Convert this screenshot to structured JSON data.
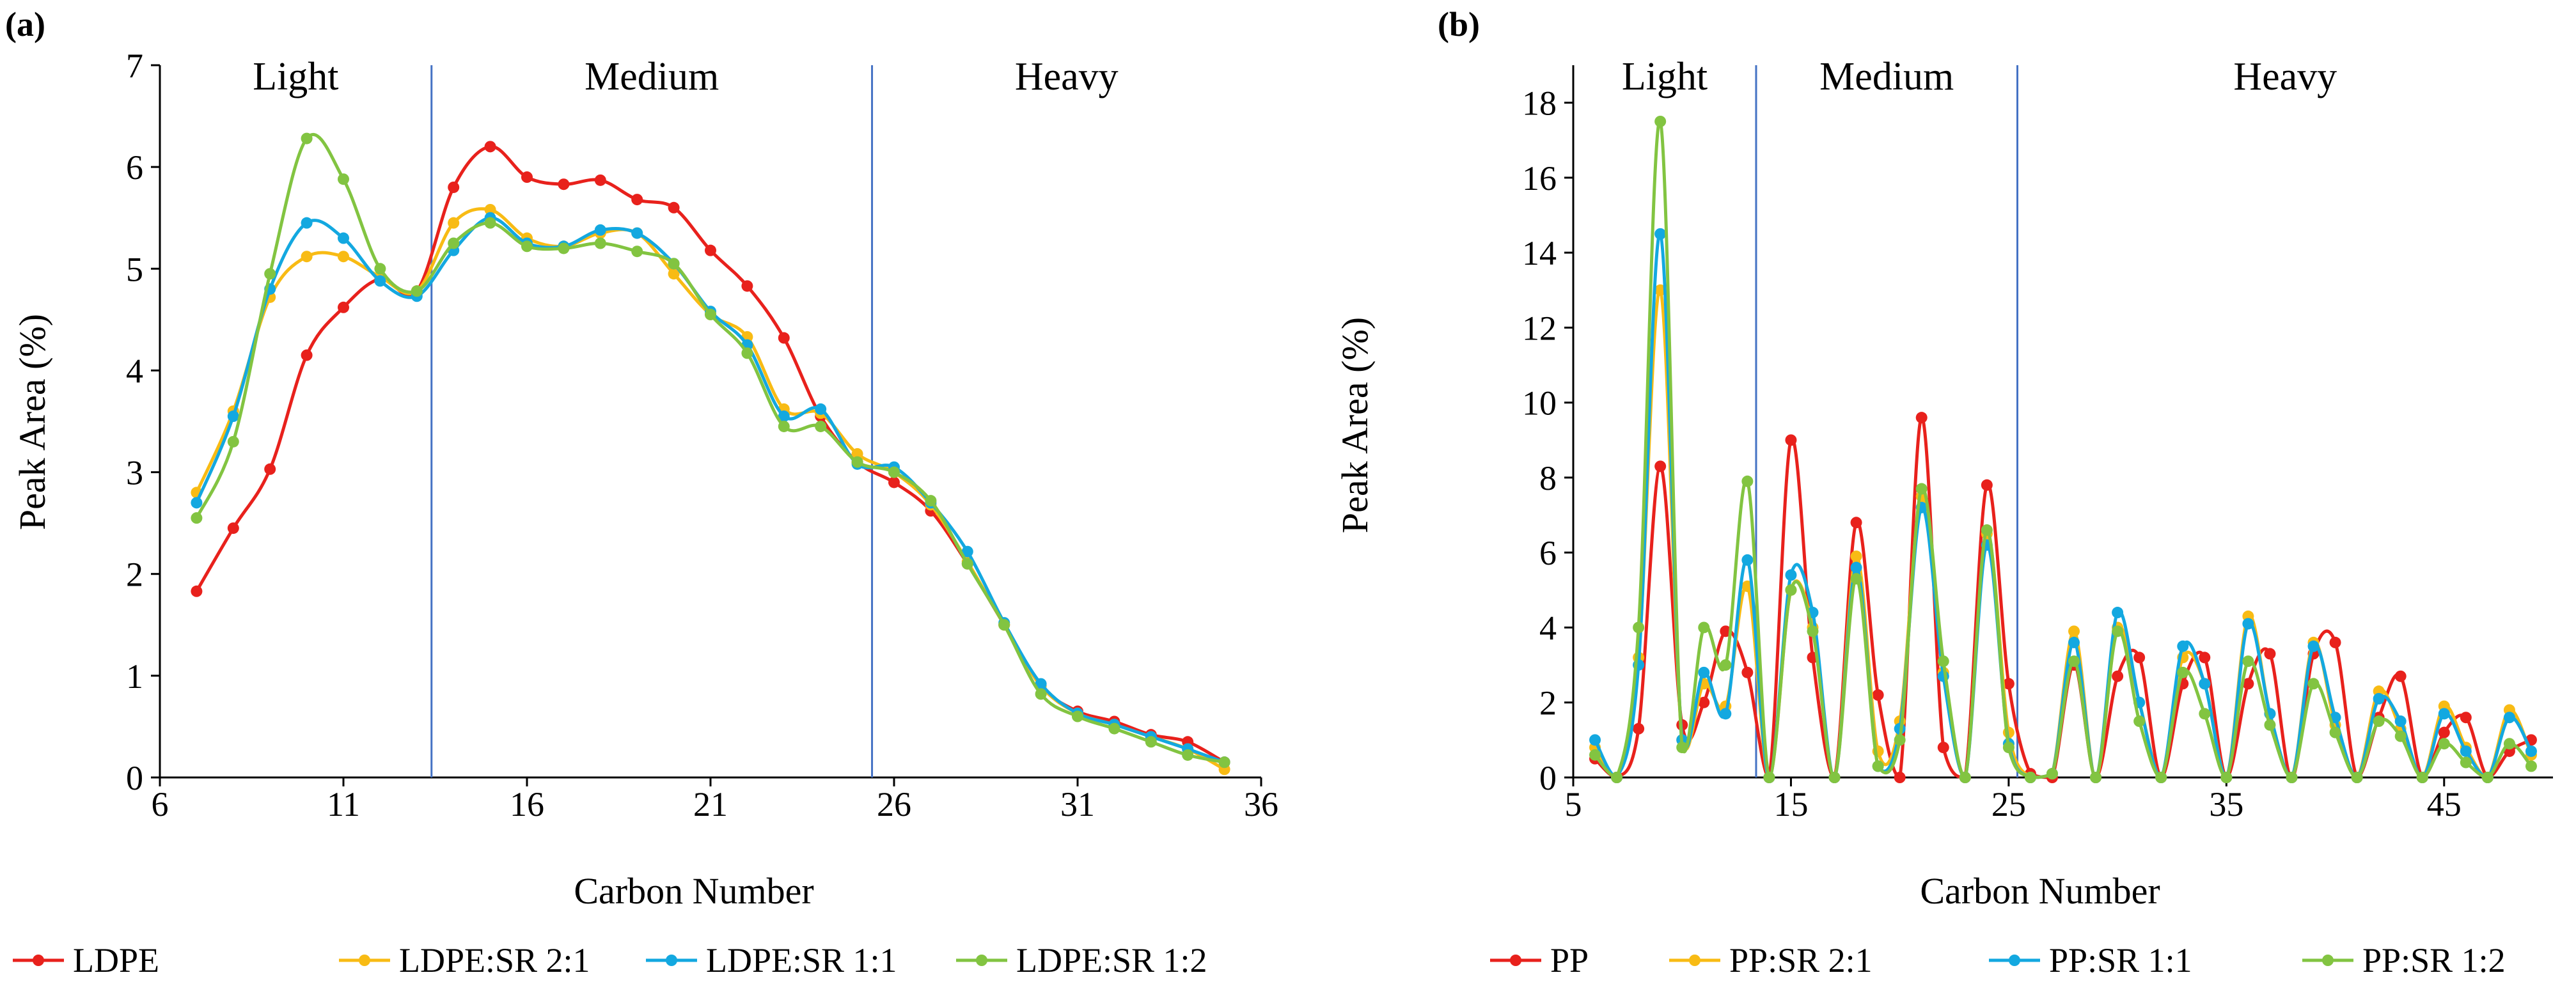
{
  "chart_data": [
    {
      "id": "a",
      "panel_label": "(a)",
      "type": "line",
      "xlabel": "Carbon Number",
      "ylabel": "Peak Area (%)",
      "xlim": [
        6,
        36
      ],
      "ylim": [
        0,
        7
      ],
      "xticks": [
        6,
        11,
        16,
        21,
        26,
        31,
        36
      ],
      "yticks": [
        0,
        1,
        2,
        3,
        4,
        5,
        6,
        7
      ],
      "grid": false,
      "legend_position": "bottom",
      "regions": [
        {
          "label": "Light",
          "x_start": 6,
          "x_end": 13.4
        },
        {
          "label": "Medium",
          "x_start": 13.4,
          "x_end": 25.4
        },
        {
          "label": "Heavy",
          "x_start": 25.4,
          "x_end": 36
        }
      ],
      "dividers": [
        13.4,
        25.4
      ],
      "x": [
        7,
        8,
        9,
        10,
        11,
        12,
        13,
        14,
        15,
        16,
        17,
        18,
        19,
        20,
        21,
        22,
        23,
        24,
        25,
        26,
        27,
        28,
        29,
        30,
        31,
        32,
        33,
        34,
        35
      ],
      "series": [
        {
          "name": "LDPE",
          "color": "#e8211c",
          "values": [
            1.83,
            2.45,
            3.03,
            4.15,
            4.62,
            4.9,
            4.78,
            5.8,
            6.2,
            5.9,
            5.83,
            5.87,
            5.68,
            5.6,
            5.18,
            4.83,
            4.32,
            3.55,
            3.1,
            2.9,
            2.62,
            2.1,
            1.5,
            0.9,
            0.65,
            0.55,
            0.42,
            0.35,
            0.15
          ]
        },
        {
          "name": "LDPE:SR 2:1",
          "color": "#f8bb14",
          "values": [
            2.8,
            3.6,
            4.72,
            5.12,
            5.12,
            4.92,
            4.78,
            5.45,
            5.58,
            5.3,
            5.22,
            5.35,
            5.35,
            4.95,
            4.55,
            4.33,
            3.62,
            3.58,
            3.18,
            3.0,
            2.68,
            2.12,
            1.5,
            0.9,
            0.63,
            0.52,
            0.4,
            0.28,
            0.08
          ]
        },
        {
          "name": "LDPE:SR 1:1",
          "color": "#13a8e0",
          "values": [
            2.7,
            3.55,
            4.8,
            5.45,
            5.3,
            4.88,
            4.73,
            5.18,
            5.5,
            5.25,
            5.22,
            5.38,
            5.35,
            5.05,
            4.58,
            4.25,
            3.55,
            3.62,
            3.08,
            3.05,
            2.7,
            2.22,
            1.52,
            0.92,
            0.63,
            0.52,
            0.4,
            0.28,
            0.15
          ]
        },
        {
          "name": "LDPE:SR 1:2",
          "color": "#82c441",
          "values": [
            2.55,
            3.3,
            4.95,
            6.28,
            5.88,
            5.0,
            4.78,
            5.25,
            5.45,
            5.22,
            5.2,
            5.25,
            5.17,
            5.05,
            4.55,
            4.17,
            3.45,
            3.45,
            3.1,
            3.0,
            2.72,
            2.1,
            1.5,
            0.82,
            0.6,
            0.48,
            0.35,
            0.22,
            0.15
          ]
        }
      ]
    },
    {
      "id": "b",
      "panel_label": "(b)",
      "type": "line",
      "xlabel": "Carbon Number",
      "ylabel": "Peak Area (%)",
      "xlim": [
        5,
        50
      ],
      "ylim": [
        0,
        19
      ],
      "xticks": [
        5,
        15,
        25,
        35,
        45
      ],
      "yticks": [
        0,
        2,
        4,
        6,
        8,
        10,
        12,
        14,
        16,
        18
      ],
      "grid": false,
      "legend_position": "bottom",
      "regions": [
        {
          "label": "Light",
          "x_start": 5,
          "x_end": 13.4
        },
        {
          "label": "Medium",
          "x_start": 13.4,
          "x_end": 25.4
        },
        {
          "label": "Heavy",
          "x_start": 25.4,
          "x_end": 50
        }
      ],
      "dividers": [
        13.4,
        25.4
      ],
      "x": [
        6,
        7,
        8,
        9,
        10,
        11,
        12,
        13,
        14,
        15,
        16,
        17,
        18,
        19,
        20,
        21,
        22,
        23,
        24,
        25,
        26,
        27,
        28,
        29,
        30,
        31,
        32,
        33,
        34,
        35,
        36,
        37,
        38,
        39,
        40,
        41,
        42,
        43,
        44,
        45,
        46,
        47,
        48,
        49
      ],
      "series": [
        {
          "name": "PP",
          "color": "#e8211c",
          "values": [
            0.5,
            0.0,
            1.3,
            8.3,
            1.4,
            2.0,
            3.9,
            2.8,
            0.0,
            9.0,
            3.2,
            0.0,
            6.8,
            2.2,
            0.0,
            9.6,
            0.8,
            0.0,
            7.8,
            2.5,
            0.1,
            0.0,
            3.0,
            0.0,
            2.7,
            3.2,
            0.0,
            2.5,
            3.2,
            0.0,
            2.5,
            3.3,
            0.0,
            3.3,
            3.6,
            0.0,
            1.6,
            2.7,
            0.0,
            1.2,
            1.6,
            0.0,
            0.7,
            1.0
          ]
        },
        {
          "name": "PP:SR 2:1",
          "color": "#f8bb14",
          "values": [
            0.8,
            0.0,
            3.2,
            13.0,
            1.0,
            2.5,
            1.9,
            5.1,
            0.0,
            5.0,
            4.0,
            0.0,
            5.9,
            0.7,
            1.5,
            7.5,
            2.8,
            0.0,
            6.5,
            1.2,
            0.0,
            0.1,
            3.9,
            0.0,
            4.0,
            2.0,
            0.0,
            3.2,
            2.5,
            0.0,
            4.3,
            1.7,
            0.0,
            3.6,
            1.4,
            0.0,
            2.3,
            1.3,
            0.0,
            1.9,
            0.8,
            0.0,
            1.8,
            0.6
          ]
        },
        {
          "name": "PP:SR 1:1",
          "color": "#13a8e0",
          "values": [
            1.0,
            0.0,
            3.0,
            14.5,
            1.0,
            2.8,
            1.7,
            5.8,
            0.0,
            5.4,
            4.4,
            0.0,
            5.6,
            0.3,
            1.3,
            7.2,
            2.7,
            0.0,
            6.2,
            0.9,
            0.0,
            0.1,
            3.6,
            0.0,
            4.4,
            2.0,
            0.0,
            3.5,
            2.5,
            0.0,
            4.1,
            1.7,
            0.0,
            3.5,
            1.6,
            0.0,
            2.1,
            1.5,
            0.0,
            1.7,
            0.7,
            0.0,
            1.6,
            0.7
          ]
        },
        {
          "name": "PP:SR 1:2",
          "color": "#82c441",
          "values": [
            0.6,
            0.0,
            4.0,
            17.5,
            0.8,
            4.0,
            3.0,
            7.9,
            0.0,
            5.0,
            3.9,
            0.0,
            5.3,
            0.3,
            1.0,
            7.7,
            3.1,
            0.0,
            6.6,
            0.8,
            0.0,
            0.1,
            3.1,
            0.0,
            3.9,
            1.5,
            0.0,
            2.8,
            1.7,
            0.0,
            3.1,
            1.4,
            0.0,
            2.5,
            1.2,
            0.0,
            1.5,
            1.1,
            0.0,
            0.9,
            0.4,
            0.0,
            0.9,
            0.3
          ]
        }
      ]
    }
  ]
}
